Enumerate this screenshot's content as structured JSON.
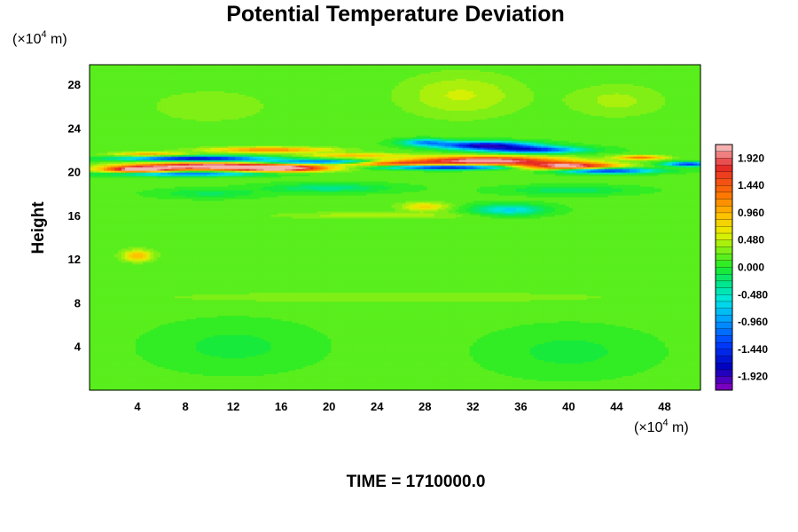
{
  "chart_data": {
    "type": "heatmap",
    "title": "Potential Temperature Deviation",
    "ylabel": "Height",
    "xlabel": "",
    "x_unit": "(×10⁴ m)",
    "y_unit": "(×10⁴ m)",
    "x_unit_prefix": "(×10",
    "x_unit_exp": "4",
    "x_unit_suffix": " m)",
    "y_unit_prefix": "(×10",
    "y_unit_exp": "4",
    "y_unit_suffix": " m)",
    "caption": "TIME = 1710000.0",
    "xlim": [
      0,
      51
    ],
    "ylim": [
      0,
      29.8
    ],
    "x_ticks": [
      4,
      8,
      12,
      16,
      20,
      24,
      28,
      32,
      36,
      40,
      44,
      48
    ],
    "y_ticks": [
      4,
      8,
      12,
      16,
      20,
      24,
      28
    ],
    "x_tick_labels": [
      "4",
      "8",
      "12",
      "16",
      "20",
      "24",
      "28",
      "32",
      "36",
      "40",
      "44",
      "48"
    ],
    "y_tick_labels": [
      "4",
      "8",
      "12",
      "16",
      "20",
      "24",
      "28"
    ],
    "colorbar": {
      "range": [
        -2.16,
        2.16
      ],
      "tick_values": [
        1.92,
        1.44,
        0.96,
        0.48,
        0.0,
        -0.48,
        -0.96,
        -1.44,
        -1.92
      ],
      "tick_labels": [
        "1.920",
        "1.440",
        "0.960",
        "0.480",
        "0.000",
        "-0.480",
        "-0.960",
        "-1.440",
        "-1.920"
      ],
      "levels": 36
    },
    "background_value": 0.15,
    "features": [
      {
        "x": 10,
        "y": 20.5,
        "sx": 6,
        "sy": 0.35,
        "v": 2.1
      },
      {
        "x": 4,
        "y": 20.2,
        "sx": 3,
        "sy": 0.3,
        "v": 1.9
      },
      {
        "x": 16,
        "y": 20.3,
        "sx": 4,
        "sy": 0.3,
        "v": 2.0
      },
      {
        "x": 33,
        "y": 21.0,
        "sx": 6,
        "sy": 0.4,
        "v": 2.1
      },
      {
        "x": 40,
        "y": 20.5,
        "sx": 4,
        "sy": 0.35,
        "v": 2.0
      },
      {
        "x": 25,
        "y": 20.8,
        "sx": 4,
        "sy": 0.25,
        "v": 1.6
      },
      {
        "x": 9,
        "y": 21.2,
        "sx": 6,
        "sy": 0.22,
        "v": -2.0
      },
      {
        "x": 20,
        "y": 20.9,
        "sx": 6,
        "sy": 0.18,
        "v": -1.6
      },
      {
        "x": 30,
        "y": 20.4,
        "sx": 5,
        "sy": 0.2,
        "v": -2.0
      },
      {
        "x": 43,
        "y": 20.1,
        "sx": 4,
        "sy": 0.25,
        "v": -1.8
      },
      {
        "x": 8,
        "y": 19.8,
        "sx": 6,
        "sy": 0.2,
        "v": -1.4
      },
      {
        "x": 50,
        "y": 20.7,
        "sx": 2,
        "sy": 0.2,
        "v": -1.6
      },
      {
        "x": 33,
        "y": 22.4,
        "sx": 4,
        "sy": 0.35,
        "v": -2.0
      },
      {
        "x": 37,
        "y": 22.0,
        "sx": 4,
        "sy": 0.3,
        "v": -1.6
      },
      {
        "x": 28,
        "y": 22.7,
        "sx": 2,
        "sy": 0.3,
        "v": -1.0
      },
      {
        "x": 15,
        "y": 22.0,
        "sx": 5,
        "sy": 0.25,
        "v": 1.1
      },
      {
        "x": 5,
        "y": 21.6,
        "sx": 3,
        "sy": 0.2,
        "v": 0.9
      },
      {
        "x": 46,
        "y": 21.3,
        "sx": 2,
        "sy": 0.2,
        "v": 1.1
      },
      {
        "x": 22,
        "y": 21.5,
        "sx": 4,
        "sy": 0.2,
        "v": 0.8
      },
      {
        "x": 35,
        "y": 16.5,
        "sx": 3,
        "sy": 0.5,
        "v": -0.8
      },
      {
        "x": 28,
        "y": 16.8,
        "sx": 2,
        "sy": 0.4,
        "v": 0.6
      },
      {
        "x": 20,
        "y": 18.5,
        "sx": 5,
        "sy": 0.4,
        "v": -0.45
      },
      {
        "x": 40,
        "y": 18.3,
        "sx": 5,
        "sy": 0.4,
        "v": -0.35
      },
      {
        "x": 10,
        "y": 18.0,
        "sx": 4,
        "sy": 0.4,
        "v": -0.3
      },
      {
        "x": 4,
        "y": 12.3,
        "sx": 1.2,
        "sy": 0.5,
        "v": 0.75
      },
      {
        "x": 31,
        "y": 27.0,
        "sx": 5,
        "sy": 2.0,
        "v": 0.35
      },
      {
        "x": 10,
        "y": 26.0,
        "sx": 5,
        "sy": 1.5,
        "v": 0.2
      },
      {
        "x": 44,
        "y": 26.5,
        "sx": 4,
        "sy": 1.5,
        "v": 0.25
      },
      {
        "x": 24,
        "y": 16.0,
        "sx": 8,
        "sy": 0.3,
        "v": 0.3
      },
      {
        "x": 25,
        "y": 8.5,
        "sx": 25,
        "sy": 0.6,
        "v": 0.15
      },
      {
        "x": 12,
        "y": 4.0,
        "sx": 6,
        "sy": 2.0,
        "v": -0.2
      },
      {
        "x": 40,
        "y": 3.5,
        "sx": 6,
        "sy": 2.0,
        "v": -0.2
      },
      {
        "x": 25,
        "y": 13.0,
        "sx": 25,
        "sy": 2.0,
        "v": 0.05
      }
    ]
  }
}
